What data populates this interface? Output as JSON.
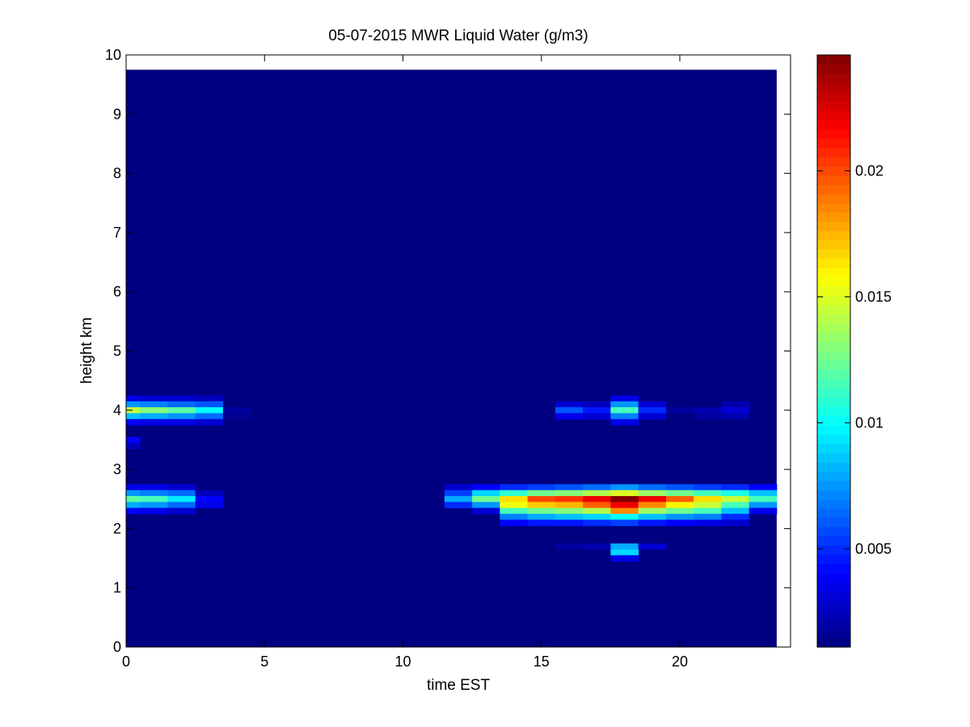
{
  "chart_data": {
    "type": "heatmap",
    "title": "05-07-2015 MWR Liquid Water (g/m3)",
    "xlabel": "time EST",
    "ylabel": "height km",
    "xlim": [
      0,
      24
    ],
    "ylim": [
      0,
      10
    ],
    "x_ticks": [
      0,
      5,
      10,
      15,
      20
    ],
    "x_tick_labels": [
      "0",
      "5",
      "10",
      "15",
      "20"
    ],
    "y_ticks": [
      0,
      1,
      2,
      3,
      4,
      5,
      6,
      7,
      8,
      9,
      10
    ],
    "y_tick_labels": [
      "0",
      "1",
      "2",
      "3",
      "4",
      "5",
      "6",
      "7",
      "8",
      "9",
      "10"
    ],
    "colormap": "jet",
    "colorbar": {
      "range": [
        0.0011,
        0.0246
      ],
      "ticks": [
        0.005,
        0.01,
        0.015,
        0.02
      ],
      "tick_labels": [
        "0.005",
        "0.01",
        "0.015",
        "0.02"
      ]
    },
    "grid": false,
    "background_value": 0.0011,
    "data_extent": {
      "x": [
        0,
        23.5
      ],
      "y": [
        0,
        9.75
      ]
    },
    "cell_width_hours": 1.0,
    "cells": [
      {
        "x": 0,
        "y": 4.2,
        "v": 0.0035
      },
      {
        "x": 0,
        "y": 4.1,
        "v": 0.0075
      },
      {
        "x": 0,
        "y": 4.0,
        "v": 0.0145
      },
      {
        "x": 0,
        "y": 3.9,
        "v": 0.0085
      },
      {
        "x": 0,
        "y": 3.8,
        "v": 0.004
      },
      {
        "x": 1,
        "y": 4.2,
        "v": 0.003
      },
      {
        "x": 1,
        "y": 4.1,
        "v": 0.007
      },
      {
        "x": 1,
        "y": 4.0,
        "v": 0.013
      },
      {
        "x": 1,
        "y": 3.9,
        "v": 0.008
      },
      {
        "x": 1,
        "y": 3.8,
        "v": 0.0035
      },
      {
        "x": 2,
        "y": 4.2,
        "v": 0.003
      },
      {
        "x": 2,
        "y": 4.1,
        "v": 0.0065
      },
      {
        "x": 2,
        "y": 4.0,
        "v": 0.012
      },
      {
        "x": 2,
        "y": 3.9,
        "v": 0.0075
      },
      {
        "x": 2,
        "y": 3.8,
        "v": 0.0035
      },
      {
        "x": 3,
        "y": 4.2,
        "v": 0.0025
      },
      {
        "x": 3,
        "y": 4.1,
        "v": 0.006
      },
      {
        "x": 3,
        "y": 4.0,
        "v": 0.01
      },
      {
        "x": 3,
        "y": 3.9,
        "v": 0.0065
      },
      {
        "x": 3,
        "y": 3.8,
        "v": 0.003
      },
      {
        "x": 4,
        "y": 4.0,
        "v": 0.0018
      },
      {
        "x": 4,
        "y": 3.9,
        "v": 0.0015
      },
      {
        "x": 0,
        "y": 3.5,
        "v": 0.004
      },
      {
        "x": 0,
        "y": 3.4,
        "v": 0.0025
      },
      {
        "x": 0,
        "y": 2.7,
        "v": 0.0035
      },
      {
        "x": 0,
        "y": 2.6,
        "v": 0.0075
      },
      {
        "x": 0,
        "y": 2.5,
        "v": 0.012
      },
      {
        "x": 0,
        "y": 2.4,
        "v": 0.008
      },
      {
        "x": 0,
        "y": 2.3,
        "v": 0.004
      },
      {
        "x": 1,
        "y": 2.7,
        "v": 0.0035
      },
      {
        "x": 1,
        "y": 2.6,
        "v": 0.007
      },
      {
        "x": 1,
        "y": 2.5,
        "v": 0.0115
      },
      {
        "x": 1,
        "y": 2.4,
        "v": 0.0075
      },
      {
        "x": 1,
        "y": 2.3,
        "v": 0.0035
      },
      {
        "x": 2,
        "y": 2.7,
        "v": 0.003
      },
      {
        "x": 2,
        "y": 2.6,
        "v": 0.0065
      },
      {
        "x": 2,
        "y": 2.5,
        "v": 0.0095
      },
      {
        "x": 2,
        "y": 2.4,
        "v": 0.0065
      },
      {
        "x": 2,
        "y": 2.3,
        "v": 0.003
      },
      {
        "x": 3,
        "y": 2.6,
        "v": 0.0025
      },
      {
        "x": 3,
        "y": 2.5,
        "v": 0.004
      },
      {
        "x": 3,
        "y": 2.4,
        "v": 0.0035
      },
      {
        "x": 12,
        "y": 2.7,
        "v": 0.003
      },
      {
        "x": 12,
        "y": 2.6,
        "v": 0.0055
      },
      {
        "x": 12,
        "y": 2.5,
        "v": 0.008
      },
      {
        "x": 12,
        "y": 2.4,
        "v": 0.005
      },
      {
        "x": 13,
        "y": 2.7,
        "v": 0.004
      },
      {
        "x": 13,
        "y": 2.6,
        "v": 0.009
      },
      {
        "x": 13,
        "y": 2.5,
        "v": 0.0125
      },
      {
        "x": 13,
        "y": 2.4,
        "v": 0.0075
      },
      {
        "x": 13,
        "y": 2.3,
        "v": 0.003
      },
      {
        "x": 14,
        "y": 2.7,
        "v": 0.005
      },
      {
        "x": 14,
        "y": 2.6,
        "v": 0.011
      },
      {
        "x": 14,
        "y": 2.5,
        "v": 0.0165
      },
      {
        "x": 14,
        "y": 2.4,
        "v": 0.0155
      },
      {
        "x": 14,
        "y": 2.3,
        "v": 0.0115
      },
      {
        "x": 14,
        "y": 2.2,
        "v": 0.007
      },
      {
        "x": 14,
        "y": 2.1,
        "v": 0.004
      },
      {
        "x": 15,
        "y": 2.7,
        "v": 0.0055
      },
      {
        "x": 15,
        "y": 2.6,
        "v": 0.0125
      },
      {
        "x": 15,
        "y": 2.5,
        "v": 0.02
      },
      {
        "x": 15,
        "y": 2.4,
        "v": 0.017
      },
      {
        "x": 15,
        "y": 2.3,
        "v": 0.0125
      },
      {
        "x": 15,
        "y": 2.2,
        "v": 0.008
      },
      {
        "x": 15,
        "y": 2.1,
        "v": 0.0045
      },
      {
        "x": 16,
        "y": 2.7,
        "v": 0.006
      },
      {
        "x": 16,
        "y": 2.6,
        "v": 0.013
      },
      {
        "x": 16,
        "y": 2.5,
        "v": 0.0205
      },
      {
        "x": 16,
        "y": 2.4,
        "v": 0.0175
      },
      {
        "x": 16,
        "y": 2.3,
        "v": 0.013
      },
      {
        "x": 16,
        "y": 2.2,
        "v": 0.0085
      },
      {
        "x": 16,
        "y": 2.1,
        "v": 0.0045
      },
      {
        "x": 17,
        "y": 2.7,
        "v": 0.0065
      },
      {
        "x": 17,
        "y": 2.6,
        "v": 0.014
      },
      {
        "x": 17,
        "y": 2.5,
        "v": 0.022
      },
      {
        "x": 17,
        "y": 2.4,
        "v": 0.0195
      },
      {
        "x": 17,
        "y": 2.3,
        "v": 0.014
      },
      {
        "x": 17,
        "y": 2.2,
        "v": 0.009
      },
      {
        "x": 17,
        "y": 2.1,
        "v": 0.005
      },
      {
        "x": 18,
        "y": 2.7,
        "v": 0.0075
      },
      {
        "x": 18,
        "y": 2.6,
        "v": 0.015
      },
      {
        "x": 18,
        "y": 2.5,
        "v": 0.0245
      },
      {
        "x": 18,
        "y": 2.4,
        "v": 0.022
      },
      {
        "x": 18,
        "y": 2.3,
        "v": 0.0185
      },
      {
        "x": 18,
        "y": 2.2,
        "v": 0.01
      },
      {
        "x": 18,
        "y": 2.1,
        "v": 0.0055
      },
      {
        "x": 19,
        "y": 2.7,
        "v": 0.0065
      },
      {
        "x": 19,
        "y": 2.6,
        "v": 0.0135
      },
      {
        "x": 19,
        "y": 2.5,
        "v": 0.022
      },
      {
        "x": 19,
        "y": 2.4,
        "v": 0.0185
      },
      {
        "x": 19,
        "y": 2.3,
        "v": 0.0135
      },
      {
        "x": 19,
        "y": 2.2,
        "v": 0.0085
      },
      {
        "x": 19,
        "y": 2.1,
        "v": 0.0045
      },
      {
        "x": 20,
        "y": 2.7,
        "v": 0.006
      },
      {
        "x": 20,
        "y": 2.6,
        "v": 0.0125
      },
      {
        "x": 20,
        "y": 2.5,
        "v": 0.0195
      },
      {
        "x": 20,
        "y": 2.4,
        "v": 0.016
      },
      {
        "x": 20,
        "y": 2.3,
        "v": 0.0125
      },
      {
        "x": 20,
        "y": 2.2,
        "v": 0.0075
      },
      {
        "x": 20,
        "y": 2.1,
        "v": 0.004
      },
      {
        "x": 21,
        "y": 2.7,
        "v": 0.0055
      },
      {
        "x": 21,
        "y": 2.6,
        "v": 0.0115
      },
      {
        "x": 21,
        "y": 2.5,
        "v": 0.0165
      },
      {
        "x": 21,
        "y": 2.4,
        "v": 0.0145
      },
      {
        "x": 21,
        "y": 2.3,
        "v": 0.0115
      },
      {
        "x": 21,
        "y": 2.2,
        "v": 0.007
      },
      {
        "x": 21,
        "y": 2.1,
        "v": 0.0035
      },
      {
        "x": 22,
        "y": 2.7,
        "v": 0.005
      },
      {
        "x": 22,
        "y": 2.6,
        "v": 0.0105
      },
      {
        "x": 22,
        "y": 2.5,
        "v": 0.0145
      },
      {
        "x": 22,
        "y": 2.4,
        "v": 0.0115
      },
      {
        "x": 22,
        "y": 2.3,
        "v": 0.0085
      },
      {
        "x": 22,
        "y": 2.2,
        "v": 0.005
      },
      {
        "x": 22,
        "y": 2.1,
        "v": 0.003
      },
      {
        "x": 23,
        "y": 2.7,
        "v": 0.004
      },
      {
        "x": 23,
        "y": 2.6,
        "v": 0.0085
      },
      {
        "x": 23,
        "y": 2.5,
        "v": 0.0115
      },
      {
        "x": 23,
        "y": 2.4,
        "v": 0.0075
      },
      {
        "x": 23,
        "y": 2.3,
        "v": 0.0035
      },
      {
        "x": 16,
        "y": 4.1,
        "v": 0.003
      },
      {
        "x": 16,
        "y": 4.0,
        "v": 0.006
      },
      {
        "x": 16,
        "y": 3.9,
        "v": 0.0035
      },
      {
        "x": 17,
        "y": 4.1,
        "v": 0.0025
      },
      {
        "x": 17,
        "y": 4.0,
        "v": 0.0045
      },
      {
        "x": 17,
        "y": 3.9,
        "v": 0.003
      },
      {
        "x": 18,
        "y": 4.2,
        "v": 0.0035
      },
      {
        "x": 18,
        "y": 4.1,
        "v": 0.0075
      },
      {
        "x": 18,
        "y": 4.0,
        "v": 0.0115
      },
      {
        "x": 18,
        "y": 3.9,
        "v": 0.007
      },
      {
        "x": 18,
        "y": 3.8,
        "v": 0.0035
      },
      {
        "x": 19,
        "y": 4.1,
        "v": 0.003
      },
      {
        "x": 19,
        "y": 4.0,
        "v": 0.005
      },
      {
        "x": 19,
        "y": 3.9,
        "v": 0.003
      },
      {
        "x": 20,
        "y": 4.0,
        "v": 0.0018
      },
      {
        "x": 21,
        "y": 4.0,
        "v": 0.0022
      },
      {
        "x": 21,
        "y": 3.9,
        "v": 0.0018
      },
      {
        "x": 22,
        "y": 4.1,
        "v": 0.0022
      },
      {
        "x": 22,
        "y": 4.0,
        "v": 0.003
      },
      {
        "x": 22,
        "y": 3.9,
        "v": 0.0022
      },
      {
        "x": 16,
        "y": 1.7,
        "v": 0.0018
      },
      {
        "x": 17,
        "y": 1.7,
        "v": 0.0022
      },
      {
        "x": 18,
        "y": 1.7,
        "v": 0.008
      },
      {
        "x": 18,
        "y": 1.6,
        "v": 0.009
      },
      {
        "x": 18,
        "y": 1.5,
        "v": 0.0035
      },
      {
        "x": 19,
        "y": 1.7,
        "v": 0.003
      }
    ]
  }
}
